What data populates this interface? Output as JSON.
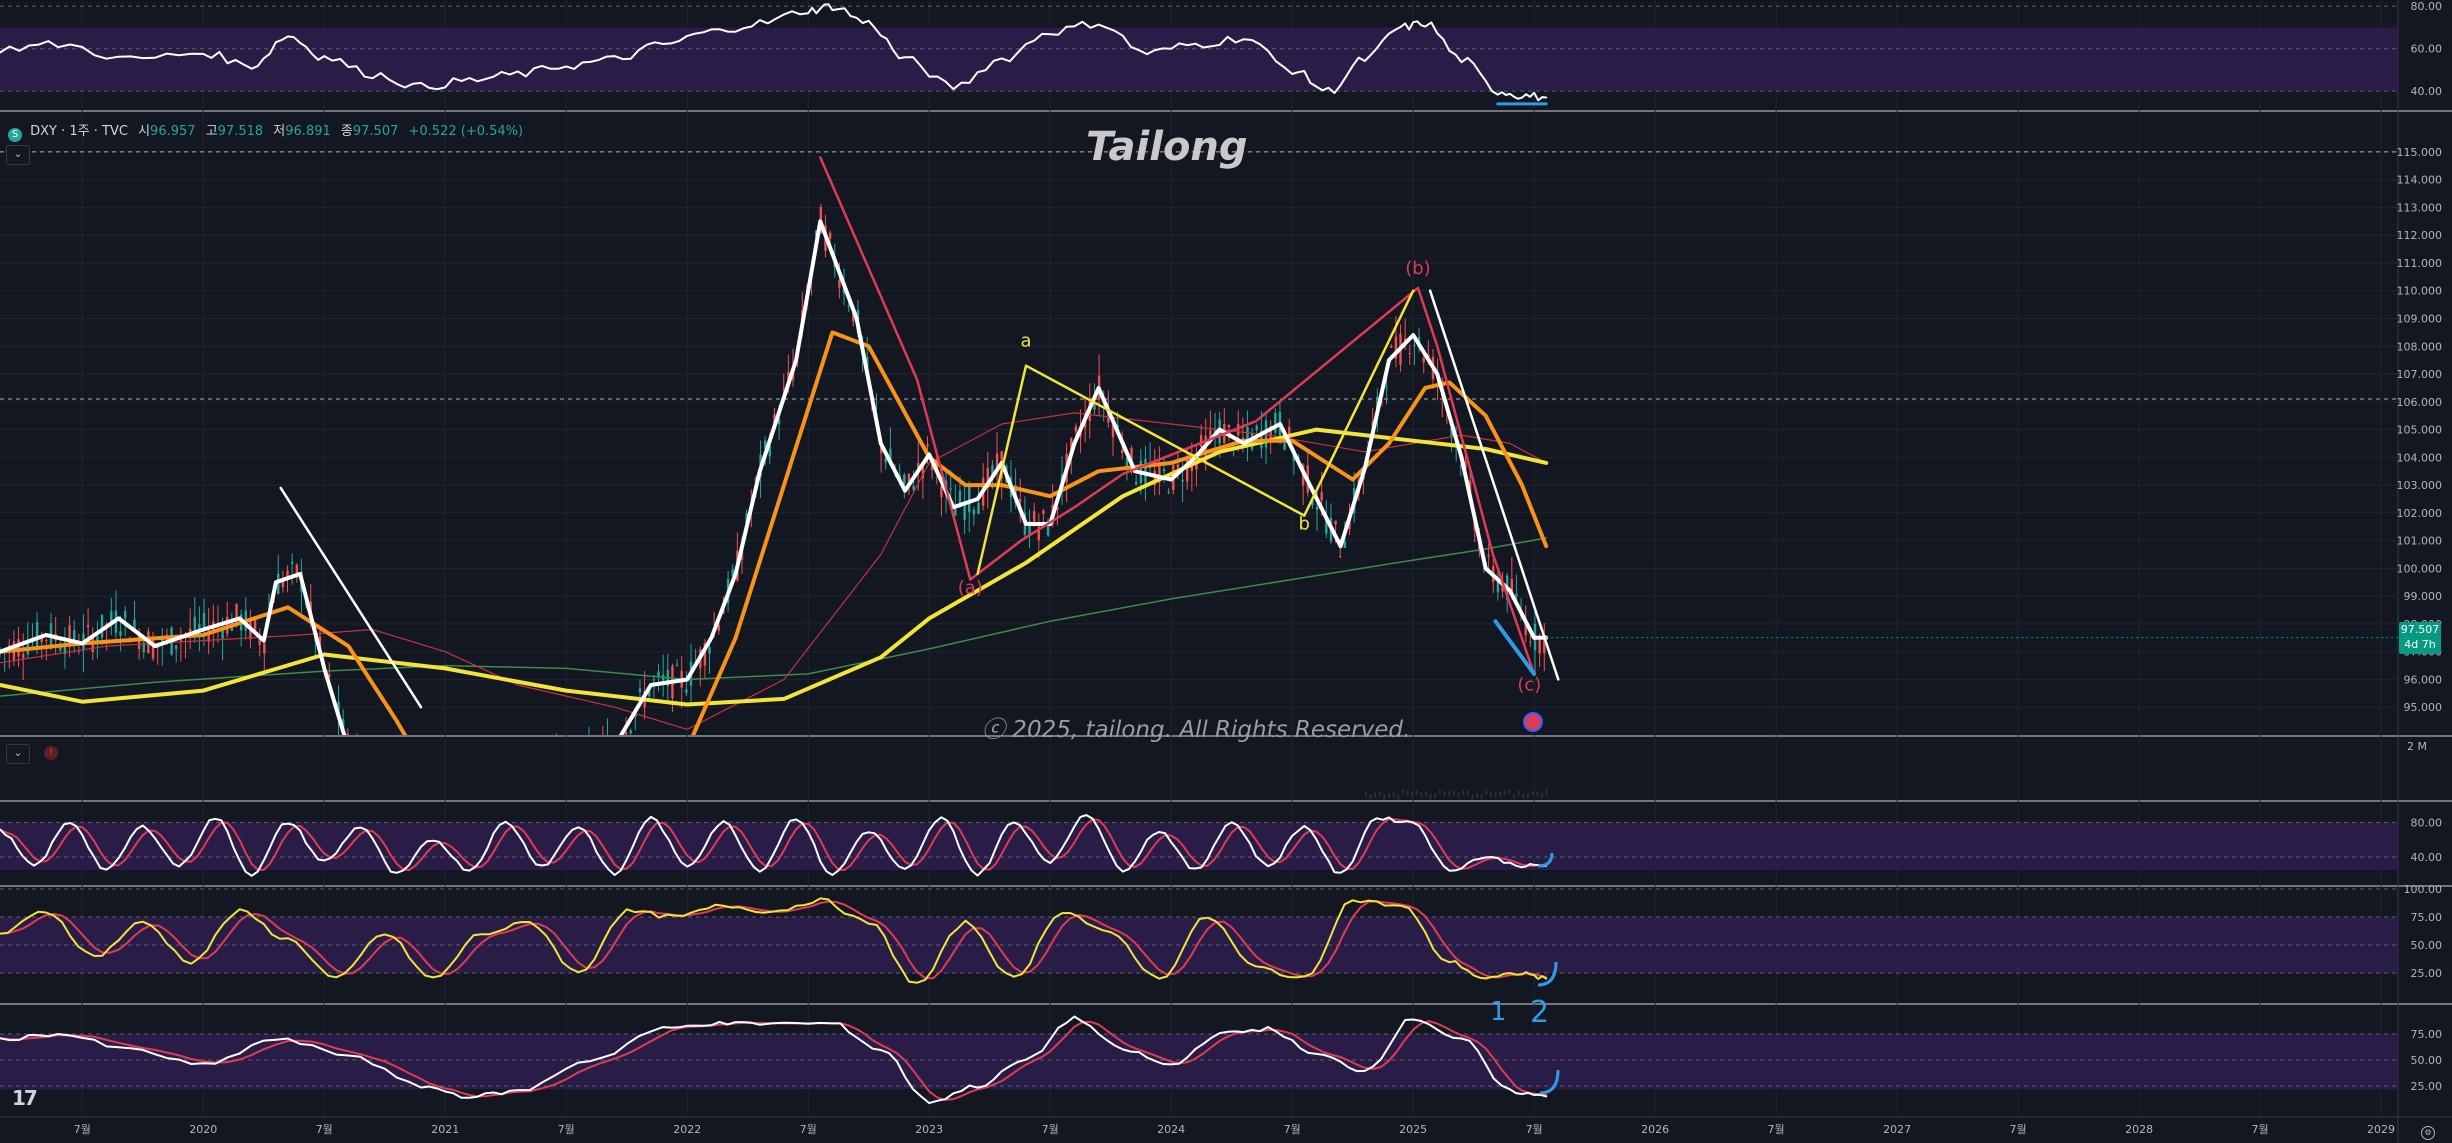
{
  "header": {
    "symbol_icon": "S",
    "symbol": "DXY · 1주 · TVC",
    "open_label": "시",
    "open": "96.957",
    "high_label": "고",
    "high": "97.518",
    "low_label": "저",
    "low": "96.891",
    "close_label": "종",
    "close": "97.507",
    "change": "+0.522 (+0.54%)"
  },
  "watermark": "Tailong",
  "copyright": "ⓒ 2025, tailong. All Rights Reserved.",
  "last_price": {
    "value": "97.507",
    "countdown": "4d 7h"
  },
  "volume_scale_label": "2 M",
  "colors": {
    "background": "#131722",
    "price_line": "#ffffff",
    "ma_orange": "#f7931a",
    "ma_yellow": "#f2e43a",
    "ma_red": "#c2343f",
    "ma_green": "#3c8c4a",
    "wave_red": "#e03b54",
    "wave_yellow": "#f2e43a",
    "annotation_blue": "#2c9be8",
    "up_candle": "#26a69a",
    "down_candle": "#ef5350",
    "band_purple": "#2e1f4d"
  },
  "chart_data": {
    "type": "line",
    "title": "DXY · 1주 · TVC",
    "x_axis": {
      "tick_labels": [
        "7월",
        "2020",
        "7월",
        "2021",
        "7월",
        "2022",
        "7월",
        "2023",
        "7월",
        "2024",
        "7월",
        "2025",
        "7월",
        "2026",
        "7월",
        "2027",
        "7월",
        "2028",
        "7월",
        "2029"
      ],
      "tick_values": [
        2019.5,
        2020.0,
        2020.5,
        2021.0,
        2021.5,
        2022.0,
        2022.5,
        2023.0,
        2023.5,
        2024.0,
        2024.5,
        2025.0,
        2025.5,
        2026.0,
        2026.5,
        2027.0,
        2027.5,
        2028.0,
        2028.5,
        2029.0
      ],
      "range": [
        2019.16,
        2029.07
      ]
    },
    "price_axis": {
      "range": [
        94.0,
        115.5
      ],
      "tick_labels": [
        "95.000",
        "96.000",
        "97.000",
        "98.000",
        "99.000",
        "100.000",
        "101.000",
        "102.000",
        "103.000",
        "104.000",
        "105.000",
        "106.000",
        "107.000",
        "108.000",
        "109.000",
        "110.000",
        "111.000",
        "112.000",
        "113.000",
        "114.000",
        "115.000"
      ],
      "tick_values": [
        95,
        96,
        97,
        98,
        99,
        100,
        101,
        102,
        103,
        104,
        105,
        106,
        107,
        108,
        109,
        110,
        111,
        112,
        113,
        114,
        115
      ]
    },
    "series": [
      {
        "name": "",
        "kind": "price",
        "x": [
          2019.16,
          2019.35,
          2019.5,
          2019.65,
          2019.8,
          2020.0,
          2020.15,
          2020.25,
          2020.3,
          2020.4,
          2020.5,
          2020.6,
          2020.7,
          2020.8,
          2021.0,
          2021.2,
          2021.35,
          2021.45,
          2021.55,
          2021.7,
          2021.85,
          2022.0,
          2022.1,
          2022.2,
          2022.3,
          2022.45,
          2022.55,
          2022.7,
          2022.8,
          2022.9,
          2023.0,
          2023.1,
          2023.2,
          2023.3,
          2023.4,
          2023.5,
          2023.6,
          2023.7,
          2023.75,
          2023.85,
          2024.0,
          2024.1,
          2024.2,
          2024.3,
          2024.45,
          2024.55,
          2024.7,
          2024.8,
          2024.9,
          2025.0,
          2025.1,
          2025.2,
          2025.3,
          2025.4,
          2025.5,
          2025.55
        ],
        "y": [
          97.0,
          97.6,
          97.3,
          98.2,
          97.2,
          97.8,
          98.2,
          97.4,
          99.5,
          99.8,
          96.4,
          93.5,
          92.8,
          91.6,
          90.5,
          91.5,
          92.2,
          92.8,
          92.9,
          93.6,
          95.8,
          96.0,
          97.5,
          99.8,
          103.5,
          107.5,
          112.5,
          109.0,
          104.5,
          102.8,
          104.1,
          102.2,
          102.5,
          103.8,
          101.6,
          101.6,
          104.5,
          106.5,
          105.5,
          103.5,
          103.2,
          104.0,
          105.0,
          104.5,
          105.2,
          103.4,
          100.8,
          103.6,
          107.5,
          108.4,
          107.0,
          104.0,
          100.0,
          99.2,
          97.5,
          97.507
        ]
      },
      {
        "name": "",
        "kind": "ma_fast_orange",
        "x": [
          2019.16,
          2019.5,
          2020.0,
          2020.35,
          2020.6,
          2020.8,
          2021.0,
          2021.6,
          2022.0,
          2022.2,
          2022.4,
          2022.6,
          2022.75,
          2023.0,
          2023.15,
          2023.3,
          2023.5,
          2023.7,
          2024.0,
          2024.3,
          2024.5,
          2024.75,
          2024.9,
          2025.05,
          2025.15,
          2025.3,
          2025.45,
          2025.55
        ],
        "y": [
          97.0,
          97.3,
          97.6,
          98.6,
          97.2,
          94.5,
          91.5,
          91.0,
          93.5,
          97.5,
          103.0,
          108.5,
          108.0,
          104.0,
          103.0,
          103.0,
          102.6,
          103.5,
          103.8,
          104.6,
          104.6,
          103.2,
          104.5,
          106.5,
          106.7,
          105.5,
          103.0,
          100.8
        ]
      },
      {
        "name": "",
        "kind": "ma_yellow",
        "x": [
          2019.16,
          2019.5,
          2020.0,
          2020.5,
          2021.0,
          2021.5,
          2022.0,
          2022.4,
          2022.8,
          2023.0,
          2023.4,
          2023.8,
          2024.2,
          2024.6,
          2025.0,
          2025.3,
          2025.55
        ],
        "y": [
          95.8,
          95.2,
          95.6,
          96.9,
          96.4,
          95.6,
          95.1,
          95.3,
          96.8,
          98.2,
          100.2,
          102.6,
          104.2,
          105.0,
          104.6,
          104.3,
          103.8
        ]
      },
      {
        "name": "",
        "kind": "ma_red",
        "x": [
          2019.16,
          2019.6,
          2020.0,
          2020.4,
          2020.7,
          2021.0,
          2021.3,
          2021.7,
          2022.0,
          2022.4,
          2022.8,
          2023.0,
          2023.3,
          2023.6,
          2024.0,
          2024.4,
          2024.8,
          2025.0,
          2025.2,
          2025.4,
          2025.55
        ],
        "y": [
          96.6,
          97.2,
          97.4,
          97.6,
          97.8,
          97.0,
          95.8,
          95.0,
          94.2,
          96.0,
          100.5,
          103.8,
          105.2,
          105.6,
          105.2,
          104.8,
          104.2,
          104.5,
          104.8,
          104.5,
          103.8
        ]
      },
      {
        "name": "",
        "kind": "ma_green",
        "x": [
          2019.16,
          2019.8,
          2020.5,
          2021.0,
          2021.5,
          2022.0,
          2022.5,
          2023.0,
          2023.5,
          2024.0,
          2024.5,
          2025.0,
          2025.3,
          2025.55
        ],
        "y": [
          95.4,
          95.9,
          96.3,
          96.5,
          96.4,
          96.0,
          96.2,
          97.1,
          98.1,
          98.9,
          99.6,
          100.3,
          100.7,
          101.1
        ]
      }
    ],
    "wave_lines": [
      {
        "name": "",
        "color": "red",
        "x": [
          2022.55,
          2022.95,
          2023.17,
          2023.38,
          2023.6,
          2023.8,
          2024.35,
          2025.02,
          2025.1,
          2025.33,
          2025.5
        ],
        "y": [
          114.8,
          106.8,
          99.6,
          101.0,
          102.2,
          103.4,
          105.3,
          110.1,
          108.0,
          100.5,
          96.2
        ]
      },
      {
        "name": "",
        "color": "yellow",
        "x": [
          2023.2,
          2023.4,
          2024.55,
          2025.0
        ],
        "y": [
          99.8,
          107.3,
          101.9,
          110.0
        ]
      },
      {
        "name": "",
        "color": "white",
        "x": [
          2020.32,
          2020.9
        ],
        "y": [
          102.9,
          95.0
        ]
      },
      {
        "name": "",
        "color": "white",
        "x": [
          2025.07,
          2025.6
        ],
        "y": [
          110.0,
          96.0
        ]
      },
      {
        "name": "",
        "color": "blue",
        "x": [
          2025.34,
          2025.5
        ],
        "y": [
          98.1,
          96.2
        ]
      }
    ],
    "labels": [
      {
        "text": "(a)",
        "x": 2023.17,
        "y": 99.1,
        "color": "red"
      },
      {
        "text": "a",
        "x": 2023.4,
        "y": 108.0,
        "color": "yellow"
      },
      {
        "text": "b",
        "x": 2024.55,
        "y": 101.4,
        "color": "yellow"
      },
      {
        "text": "(b)",
        "x": 2025.02,
        "y": 110.6,
        "color": "red"
      },
      {
        "text": "(c)",
        "x": 2025.48,
        "y": 95.6,
        "color": "red"
      }
    ],
    "candle_region": [
      2019.16,
      2025.55
    ],
    "dashed_levels": [
      115.0,
      106.1
    ],
    "top_oscillator": {
      "scale_labels": [
        "80.00",
        "60.00",
        "40.00"
      ],
      "scale_values": [
        80,
        60,
        40
      ],
      "range": [
        33,
        82
      ],
      "x": [
        2019.16,
        2019.4,
        2019.7,
        2020.0,
        2020.2,
        2020.35,
        2020.5,
        2020.7,
        2020.9,
        2021.1,
        2021.3,
        2021.5,
        2021.7,
        2021.9,
        2022.1,
        2022.3,
        2022.5,
        2022.6,
        2022.75,
        2022.9,
        2023.1,
        2023.3,
        2023.5,
        2023.7,
        2023.9,
        2024.1,
        2024.3,
        2024.5,
        2024.65,
        2024.8,
        2024.95,
        2025.05,
        2025.2,
        2025.35,
        2025.45,
        2025.55
      ],
      "y": [
        60,
        62,
        55,
        58,
        52,
        66,
        56,
        48,
        42,
        45,
        48,
        52,
        55,
        62,
        68,
        72,
        78,
        80,
        72,
        55,
        42,
        55,
        68,
        72,
        58,
        62,
        65,
        50,
        40,
        55,
        70,
        72,
        55,
        40,
        38,
        37
      ]
    },
    "stoch_panel_1": {
      "scale_labels": [
        "80.00",
        "40.00"
      ],
      "scale_values": [
        80,
        40
      ],
      "range": [
        10,
        100
      ],
      "x": [
        2019.16,
        2019.3,
        2019.45,
        2019.6,
        2019.75,
        2019.9,
        2020.05,
        2020.2,
        2020.35,
        2020.5,
        2020.65,
        2020.8,
        2020.95,
        2021.1,
        2021.25,
        2021.4,
        2021.55,
        2021.7,
        2021.85,
        2022.0,
        2022.15,
        2022.3,
        2022.45,
        2022.6,
        2022.75,
        2022.9,
        2023.05,
        2023.2,
        2023.35,
        2023.5,
        2023.65,
        2023.8,
        2023.95,
        2024.1,
        2024.25,
        2024.4,
        2024.55,
        2024.7,
        2024.85,
        2025.0,
        2025.15,
        2025.3,
        2025.45,
        2025.55
      ],
      "y": [
        70,
        30,
        80,
        25,
        75,
        30,
        85,
        20,
        80,
        35,
        75,
        20,
        60,
        25,
        80,
        30,
        75,
        20,
        85,
        30,
        80,
        25,
        85,
        20,
        70,
        25,
        85,
        20,
        80,
        35,
        90,
        25,
        70,
        25,
        80,
        30,
        75,
        20,
        85,
        80,
        25,
        40,
        30,
        30
      ]
    },
    "stoch_panel_2": {
      "scale_labels": [
        "100.00",
        "75.00",
        "50.00",
        "25.00"
      ],
      "scale_values": [
        100,
        75,
        50,
        25
      ],
      "range": [
        0,
        100
      ],
      "x": [
        2019.16,
        2019.35,
        2019.55,
        2019.75,
        2019.95,
        2020.15,
        2020.35,
        2020.55,
        2020.75,
        2020.95,
        2021.15,
        2021.35,
        2021.55,
        2021.75,
        2021.95,
        2022.15,
        2022.35,
        2022.55,
        2022.75,
        2022.95,
        2023.15,
        2023.35,
        2023.55,
        2023.75,
        2023.95,
        2024.15,
        2024.35,
        2024.55,
        2024.75,
        2024.95,
        2025.15,
        2025.3,
        2025.45,
        2025.55
      ],
      "y": [
        60,
        80,
        40,
        70,
        35,
        80,
        55,
        20,
        60,
        20,
        60,
        70,
        25,
        80,
        75,
        85,
        80,
        90,
        70,
        15,
        70,
        20,
        80,
        60,
        20,
        75,
        30,
        20,
        90,
        85,
        35,
        20,
        25,
        20
      ]
    },
    "stoch_panel_3": {
      "scale_labels": [
        "75.00",
        "50.00",
        "25.00"
      ],
      "scale_values": [
        75,
        50,
        25
      ],
      "range": [
        0,
        100
      ],
      "x": [
        2019.16,
        2019.4,
        2019.7,
        2020.0,
        2020.3,
        2020.6,
        2020.9,
        2021.1,
        2021.3,
        2021.6,
        2021.9,
        2022.1,
        2022.3,
        2022.6,
        2022.8,
        2023.0,
        2023.2,
        2023.4,
        2023.6,
        2023.8,
        2024.0,
        2024.2,
        2024.4,
        2024.6,
        2024.8,
        2025.0,
        2025.2,
        2025.4,
        2025.55
      ],
      "y": [
        70,
        75,
        60,
        45,
        70,
        55,
        25,
        15,
        20,
        50,
        80,
        85,
        85,
        85,
        60,
        10,
        25,
        50,
        90,
        60,
        45,
        75,
        80,
        55,
        40,
        90,
        70,
        20,
        15
      ]
    },
    "annotations": [
      "1",
      "2"
    ]
  }
}
